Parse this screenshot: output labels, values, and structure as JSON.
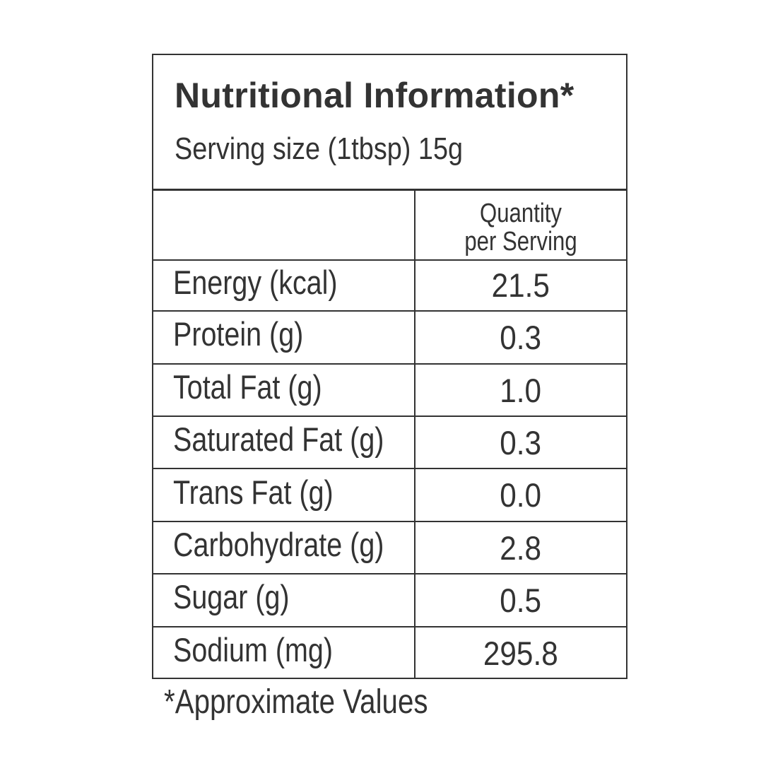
{
  "header": {
    "title": "Nutritional Information*",
    "serving_size": "Serving size (1tbsp) 15g"
  },
  "table": {
    "column_header_line1": "Quantity",
    "column_header_line2": "per Serving",
    "rows": [
      {
        "label": "Energy (kcal)",
        "value": "21.5"
      },
      {
        "label": "Protein (g)",
        "value": "0.3"
      },
      {
        "label": "Total Fat (g)",
        "value": "1.0"
      },
      {
        "label": "Saturated Fat (g)",
        "value": "0.3"
      },
      {
        "label": "Trans Fat (g)",
        "value": "0.0"
      },
      {
        "label": "Carbohydrate (g)",
        "value": "2.8"
      },
      {
        "label": "Sugar (g)",
        "value": "0.5"
      },
      {
        "label": "Sodium (mg)",
        "value": "295.8"
      }
    ]
  },
  "footnote": "*Approximate Values",
  "colors": {
    "text": "#333333",
    "border": "#333333",
    "background": "#ffffff"
  }
}
